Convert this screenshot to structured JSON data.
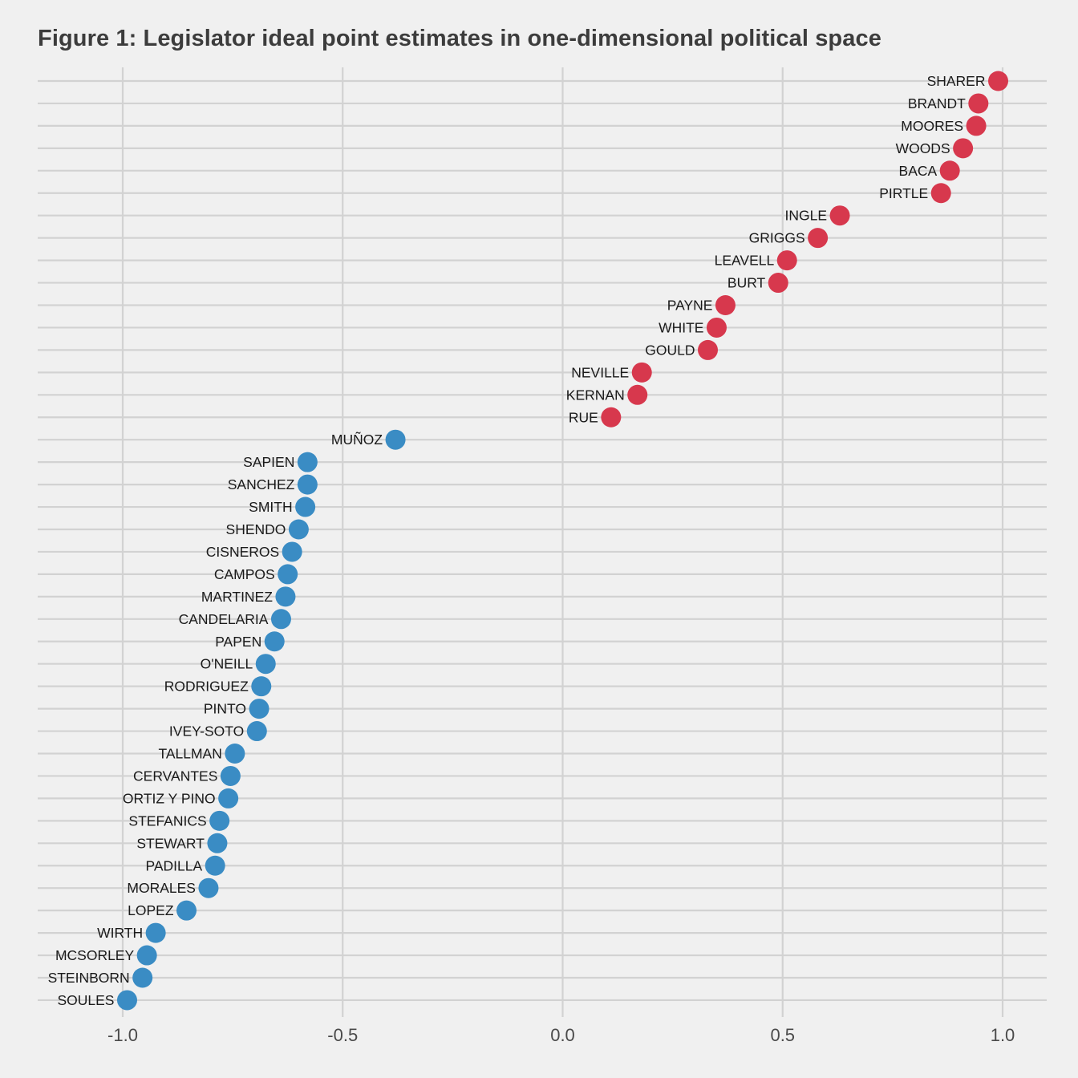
{
  "chart_data": {
    "type": "scatter",
    "title": "Figure 1: Legislator ideal point estimates in one-dimensional political space",
    "xlabel": "",
    "ylabel": "",
    "xlim": [
      -1.2,
      1.1
    ],
    "xticks": [
      -1.0,
      -0.5,
      0.0,
      0.5,
      1.0
    ],
    "xtick_labels": [
      "-1.0",
      "-0.5",
      "0.0",
      "0.5",
      "1.0"
    ],
    "grid": true,
    "legend": "none",
    "colors": {
      "republican": "#d7384d",
      "democrat": "#3a8cc4"
    },
    "points": [
      {
        "name": "SHARER",
        "x": 0.99,
        "party": "republican"
      },
      {
        "name": "BRANDT",
        "x": 0.945,
        "party": "republican"
      },
      {
        "name": "MOORES",
        "x": 0.94,
        "party": "republican"
      },
      {
        "name": "WOODS",
        "x": 0.91,
        "party": "republican"
      },
      {
        "name": "BACA",
        "x": 0.88,
        "party": "republican"
      },
      {
        "name": "PIRTLE",
        "x": 0.86,
        "party": "republican"
      },
      {
        "name": "INGLE",
        "x": 0.63,
        "party": "republican"
      },
      {
        "name": "GRIGGS",
        "x": 0.58,
        "party": "republican"
      },
      {
        "name": "LEAVELL",
        "x": 0.51,
        "party": "republican"
      },
      {
        "name": "BURT",
        "x": 0.49,
        "party": "republican"
      },
      {
        "name": "PAYNE",
        "x": 0.37,
        "party": "republican"
      },
      {
        "name": "WHITE",
        "x": 0.35,
        "party": "republican"
      },
      {
        "name": "GOULD",
        "x": 0.33,
        "party": "republican"
      },
      {
        "name": "NEVILLE",
        "x": 0.18,
        "party": "republican"
      },
      {
        "name": "KERNAN",
        "x": 0.17,
        "party": "republican"
      },
      {
        "name": "RUE",
        "x": 0.11,
        "party": "republican"
      },
      {
        "name": "MUÑOZ",
        "x": -0.38,
        "party": "democrat"
      },
      {
        "name": "SAPIEN",
        "x": -0.58,
        "party": "democrat"
      },
      {
        "name": "SANCHEZ",
        "x": -0.58,
        "party": "democrat"
      },
      {
        "name": "SMITH",
        "x": -0.585,
        "party": "democrat"
      },
      {
        "name": "SHENDO",
        "x": -0.6,
        "party": "democrat"
      },
      {
        "name": "CISNEROS",
        "x": -0.615,
        "party": "democrat"
      },
      {
        "name": "CAMPOS",
        "x": -0.625,
        "party": "democrat"
      },
      {
        "name": "MARTINEZ",
        "x": -0.63,
        "party": "democrat"
      },
      {
        "name": "CANDELARIA",
        "x": -0.64,
        "party": "democrat"
      },
      {
        "name": "PAPEN",
        "x": -0.655,
        "party": "democrat"
      },
      {
        "name": "O'NEILL",
        "x": -0.675,
        "party": "democrat"
      },
      {
        "name": "RODRIGUEZ",
        "x": -0.685,
        "party": "democrat"
      },
      {
        "name": "PINTO",
        "x": -0.69,
        "party": "democrat"
      },
      {
        "name": "IVEY-SOTO",
        "x": -0.695,
        "party": "democrat"
      },
      {
        "name": "TALLMAN",
        "x": -0.745,
        "party": "democrat"
      },
      {
        "name": "CERVANTES",
        "x": -0.755,
        "party": "democrat"
      },
      {
        "name": "ORTIZ Y PINO",
        "x": -0.76,
        "party": "democrat"
      },
      {
        "name": "STEFANICS",
        "x": -0.78,
        "party": "democrat"
      },
      {
        "name": "STEWART",
        "x": -0.785,
        "party": "democrat"
      },
      {
        "name": "PADILLA",
        "x": -0.79,
        "party": "democrat"
      },
      {
        "name": "MORALES",
        "x": -0.805,
        "party": "democrat"
      },
      {
        "name": "LOPEZ",
        "x": -0.855,
        "party": "democrat"
      },
      {
        "name": "WIRTH",
        "x": -0.925,
        "party": "democrat"
      },
      {
        "name": "MCSORLEY",
        "x": -0.945,
        "party": "democrat"
      },
      {
        "name": "STEINBORN",
        "x": -0.955,
        "party": "democrat"
      },
      {
        "name": "SOULES",
        "x": -0.99,
        "party": "democrat"
      }
    ]
  }
}
